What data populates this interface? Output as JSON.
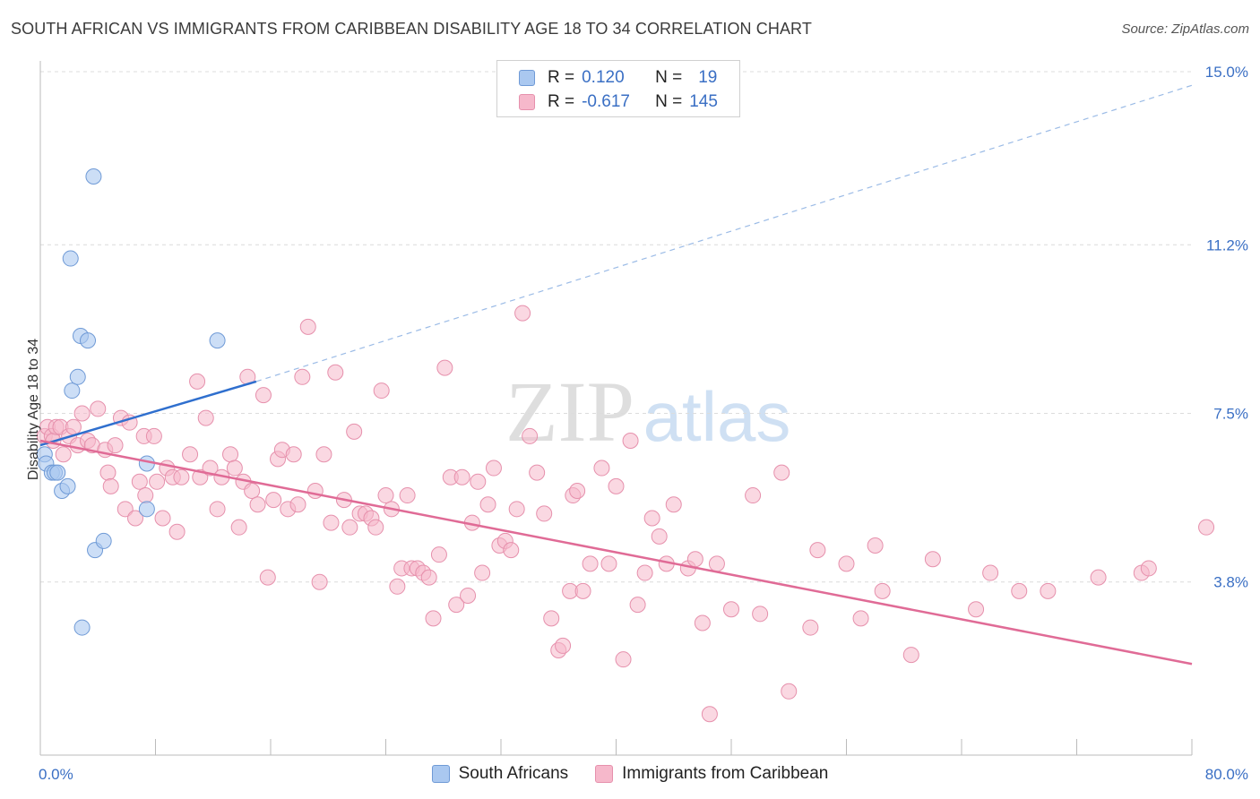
{
  "title": "SOUTH AFRICAN VS IMMIGRANTS FROM CARIBBEAN DISABILITY AGE 18 TO 34 CORRELATION CHART",
  "source": "Source: ZipAtlas.com",
  "watermark": {
    "zip": "ZIP",
    "atlas": "atlas"
  },
  "colors": {
    "blue_fill": "#aac8f0",
    "blue_stroke": "#6f9ad6",
    "blue_line": "#2f6fce",
    "pink_fill": "#f6b8cb",
    "pink_stroke": "#e690ac",
    "pink_line": "#e06b96",
    "tick_label": "#3a6fc4"
  },
  "legend": {
    "rows": [
      {
        "r_label": "R =",
        "r_value": "0.120",
        "n_label": "N =",
        "n_value": "19"
      },
      {
        "r_label": "R =",
        "r_value": "-0.617",
        "n_label": "N =",
        "n_value": "145"
      }
    ]
  },
  "bottom_legend": [
    "South Africans",
    "Immigrants from Caribbean"
  ],
  "chart_data": {
    "type": "scatter",
    "title": "SOUTH AFRICAN VS IMMIGRANTS FROM CARIBBEAN DISABILITY AGE 18 TO 34 CORRELATION CHART",
    "xlabel": "",
    "ylabel": "Disability Age 18 to 34",
    "xlim": [
      0,
      80
    ],
    "ylim": [
      0,
      15
    ],
    "x_tick_labels": [
      "0.0%",
      "80.0%"
    ],
    "y_ticks": [
      3.8,
      7.5,
      11.2,
      15.0
    ],
    "y_tick_labels": [
      "3.8%",
      "7.5%",
      "11.2%",
      "15.0%"
    ],
    "grid": "horizontal dashed",
    "legend_position": "top-center",
    "series": [
      {
        "name": "South Africans",
        "r": 0.12,
        "n": 19,
        "trend": {
          "x0": 0,
          "y0": 6.8,
          "x1": 15,
          "y1": 8.2,
          "dashed_extension_to": [
            80,
            14.7
          ]
        },
        "points": [
          [
            0.3,
            6.6
          ],
          [
            0.4,
            6.4
          ],
          [
            0.8,
            6.2
          ],
          [
            1.0,
            6.2
          ],
          [
            1.2,
            6.2
          ],
          [
            1.5,
            5.8
          ],
          [
            1.9,
            5.9
          ],
          [
            2.2,
            8.0
          ],
          [
            2.6,
            8.3
          ],
          [
            2.8,
            9.2
          ],
          [
            2.9,
            2.8
          ],
          [
            3.3,
            9.1
          ],
          [
            2.1,
            10.9
          ],
          [
            3.8,
            4.5
          ],
          [
            4.4,
            4.7
          ],
          [
            3.7,
            12.7
          ],
          [
            7.4,
            6.4
          ],
          [
            7.4,
            5.4
          ],
          [
            12.3,
            9.1
          ]
        ]
      },
      {
        "name": "Immigrants from Caribbean",
        "r": -0.617,
        "n": 145,
        "trend": {
          "x0": 0,
          "y0": 6.9,
          "x1": 80,
          "y1": 2.0
        },
        "points": [
          [
            0.3,
            7.0
          ],
          [
            0.5,
            7.2
          ],
          [
            0.8,
            7.0
          ],
          [
            0.9,
            6.9
          ],
          [
            1.1,
            7.2
          ],
          [
            1.4,
            7.2
          ],
          [
            1.6,
            6.6
          ],
          [
            2.0,
            7.0
          ],
          [
            2.3,
            7.2
          ],
          [
            2.6,
            6.8
          ],
          [
            2.9,
            7.5
          ],
          [
            3.3,
            6.9
          ],
          [
            3.6,
            6.8
          ],
          [
            4.0,
            7.6
          ],
          [
            4.5,
            6.7
          ],
          [
            4.7,
            6.2
          ],
          [
            4.9,
            5.9
          ],
          [
            5.2,
            6.8
          ],
          [
            5.6,
            7.4
          ],
          [
            5.9,
            5.4
          ],
          [
            6.2,
            7.3
          ],
          [
            6.6,
            5.2
          ],
          [
            6.9,
            6.0
          ],
          [
            7.2,
            7.0
          ],
          [
            7.3,
            5.7
          ],
          [
            7.9,
            7.0
          ],
          [
            8.1,
            6.0
          ],
          [
            8.5,
            5.2
          ],
          [
            8.8,
            6.3
          ],
          [
            9.2,
            6.1
          ],
          [
            9.5,
            4.9
          ],
          [
            9.8,
            6.1
          ],
          [
            10.4,
            6.6
          ],
          [
            10.9,
            8.2
          ],
          [
            11.1,
            6.1
          ],
          [
            11.5,
            7.4
          ],
          [
            11.8,
            6.3
          ],
          [
            12.3,
            5.4
          ],
          [
            12.6,
            6.1
          ],
          [
            13.2,
            6.6
          ],
          [
            13.5,
            6.3
          ],
          [
            13.8,
            5.0
          ],
          [
            14.1,
            6.0
          ],
          [
            14.4,
            8.3
          ],
          [
            14.7,
            5.8
          ],
          [
            15.1,
            5.5
          ],
          [
            15.5,
            7.9
          ],
          [
            15.8,
            3.9
          ],
          [
            16.2,
            5.6
          ],
          [
            16.5,
            6.5
          ],
          [
            16.8,
            6.7
          ],
          [
            17.2,
            5.4
          ],
          [
            17.6,
            6.6
          ],
          [
            17.9,
            5.5
          ],
          [
            18.2,
            8.3
          ],
          [
            18.6,
            9.4
          ],
          [
            19.1,
            5.8
          ],
          [
            19.4,
            3.8
          ],
          [
            19.7,
            6.6
          ],
          [
            20.2,
            5.1
          ],
          [
            20.5,
            8.4
          ],
          [
            21.1,
            5.6
          ],
          [
            21.5,
            5.0
          ],
          [
            21.8,
            7.1
          ],
          [
            22.2,
            5.3
          ],
          [
            22.6,
            5.3
          ],
          [
            23.0,
            5.2
          ],
          [
            23.3,
            5.0
          ],
          [
            23.7,
            8.0
          ],
          [
            24.0,
            5.7
          ],
          [
            24.4,
            5.4
          ],
          [
            24.8,
            3.7
          ],
          [
            25.1,
            4.1
          ],
          [
            25.5,
            5.7
          ],
          [
            25.8,
            4.1
          ],
          [
            26.2,
            4.1
          ],
          [
            26.6,
            4.0
          ],
          [
            27.0,
            3.9
          ],
          [
            27.3,
            3.0
          ],
          [
            27.7,
            4.4
          ],
          [
            28.1,
            8.5
          ],
          [
            28.5,
            6.1
          ],
          [
            28.9,
            3.3
          ],
          [
            29.3,
            6.1
          ],
          [
            29.7,
            3.5
          ],
          [
            30.0,
            5.1
          ],
          [
            30.4,
            6.0
          ],
          [
            30.7,
            4.0
          ],
          [
            31.1,
            5.5
          ],
          [
            31.5,
            6.3
          ],
          [
            31.9,
            4.6
          ],
          [
            32.3,
            4.7
          ],
          [
            32.7,
            4.5
          ],
          [
            33.1,
            5.4
          ],
          [
            33.5,
            9.7
          ],
          [
            34.0,
            7.0
          ],
          [
            34.5,
            6.2
          ],
          [
            35.0,
            5.3
          ],
          [
            35.5,
            3.0
          ],
          [
            36.0,
            2.3
          ],
          [
            36.3,
            2.4
          ],
          [
            36.8,
            3.6
          ],
          [
            37.0,
            5.7
          ],
          [
            37.3,
            5.8
          ],
          [
            37.7,
            3.6
          ],
          [
            38.2,
            4.2
          ],
          [
            39.0,
            6.3
          ],
          [
            39.5,
            4.2
          ],
          [
            40.0,
            5.9
          ],
          [
            40.5,
            2.1
          ],
          [
            41.0,
            6.9
          ],
          [
            41.5,
            3.3
          ],
          [
            42.0,
            4.0
          ],
          [
            42.5,
            5.2
          ],
          [
            43.0,
            4.8
          ],
          [
            43.5,
            4.2
          ],
          [
            44.0,
            5.5
          ],
          [
            45.0,
            4.1
          ],
          [
            45.5,
            4.3
          ],
          [
            46.0,
            2.9
          ],
          [
            46.5,
            0.9
          ],
          [
            47.0,
            4.2
          ],
          [
            48.0,
            3.2
          ],
          [
            49.5,
            5.7
          ],
          [
            50.0,
            3.1
          ],
          [
            51.5,
            6.2
          ],
          [
            52.0,
            1.4
          ],
          [
            53.5,
            2.8
          ],
          [
            54.0,
            4.5
          ],
          [
            56.0,
            4.2
          ],
          [
            57.0,
            3.0
          ],
          [
            58.0,
            4.6
          ],
          [
            58.5,
            3.6
          ],
          [
            60.5,
            2.2
          ],
          [
            62.0,
            4.3
          ],
          [
            65.0,
            3.2
          ],
          [
            66.0,
            4.0
          ],
          [
            68.0,
            3.6
          ],
          [
            70.0,
            3.6
          ],
          [
            73.5,
            3.9
          ],
          [
            76.5,
            4.0
          ],
          [
            77.0,
            4.1
          ],
          [
            81.0,
            5.0
          ]
        ]
      }
    ]
  }
}
